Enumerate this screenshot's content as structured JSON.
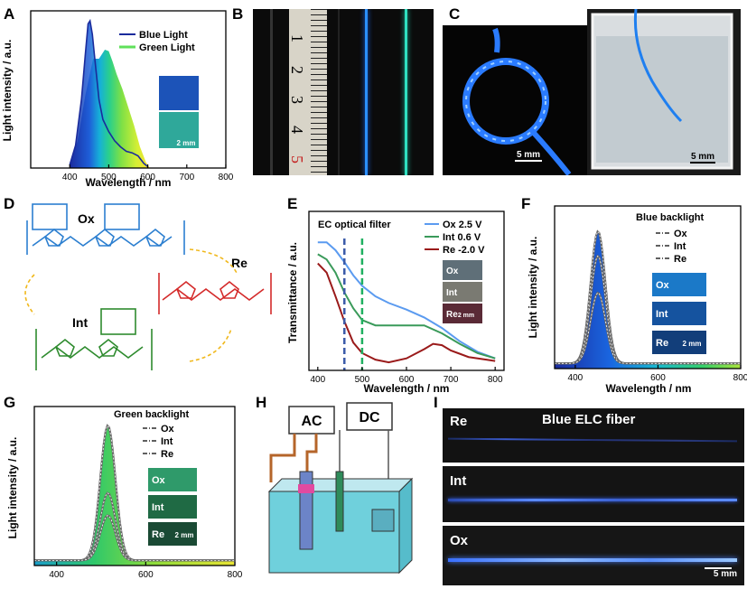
{
  "panels": {
    "A": {
      "letter": "A",
      "ylabel": "Light intensity / a.u.",
      "xlabel": "Wavelength / nm",
      "legend": [
        "Blue Light",
        "Green Light"
      ],
      "scale_bar": "2 mm",
      "colors": {
        "blue": "#1a2b9c",
        "green": "#5fe05a"
      }
    },
    "B": {
      "letter": "B",
      "ruler_numbers": [
        "1",
        "2",
        "3",
        "4",
        "5"
      ]
    },
    "C": {
      "letter": "C",
      "scale_left": "5 mm",
      "scale_right": "5 mm"
    },
    "D": {
      "letter": "D",
      "states": [
        "Ox",
        "Re",
        "Int"
      ],
      "ox_color": "#2c7fd0",
      "re_color": "#d42a2a",
      "int_color": "#2e8b2e"
    },
    "E": {
      "letter": "E",
      "title": "EC optical filter",
      "ylabel": "Transmittance / a.u.",
      "xlabel": "Wavelength / nm",
      "legend": [
        "Ox 2.5 V",
        "Int 0.6 V",
        "Re -2.0 V"
      ],
      "swatch_labels": [
        "Ox",
        "Int",
        "Re"
      ],
      "scale_bar": "2 mm"
    },
    "F": {
      "letter": "F",
      "title": "Blue backlight",
      "ylabel": "Light intensity / a.u.",
      "xlabel": "Wavelength / nm",
      "legend": [
        "Ox",
        "Int",
        "Re"
      ],
      "swatch_labels": [
        "Ox",
        "Int",
        "Re"
      ],
      "scale_bar": "2 mm"
    },
    "G": {
      "letter": "G",
      "title": "Green backlight",
      "ylabel": "Light intensity / a.u.",
      "xlabel": "Wavelength / nm",
      "legend": [
        "Ox",
        "Int",
        "Re"
      ],
      "swatch_labels": [
        "Ox",
        "Int",
        "Re"
      ],
      "scale_bar": "2 mm"
    },
    "H": {
      "letter": "H",
      "ac_label": "AC",
      "dc_label": "DC"
    },
    "I": {
      "letter": "I",
      "title": "Blue ELC fiber",
      "rows": [
        "Re",
        "Int",
        "Ox"
      ],
      "scale_bar": "5 mm"
    }
  },
  "chart_data": [
    {
      "id": "A",
      "type": "area",
      "xlim": [
        300,
        800
      ],
      "xticks": [
        "400",
        "500",
        "600",
        "700",
        "800"
      ],
      "series": [
        {
          "name": "Blue Light",
          "x": [
            400,
            415,
            430,
            440,
            447,
            452,
            458,
            465,
            475,
            485,
            500,
            515,
            530,
            545,
            560,
            575,
            590,
            600
          ],
          "values": [
            0.02,
            0.15,
            0.45,
            0.75,
            0.95,
            0.97,
            0.88,
            0.7,
            0.45,
            0.32,
            0.24,
            0.18,
            0.14,
            0.11,
            0.1,
            0.08,
            0.03,
            0.01
          ]
        },
        {
          "name": "Green Light",
          "x": [
            400,
            420,
            440,
            460,
            475,
            490,
            500,
            510,
            520,
            535,
            550,
            565,
            580,
            595,
            605
          ],
          "values": [
            0.02,
            0.18,
            0.48,
            0.72,
            0.72,
            0.78,
            0.77,
            0.7,
            0.62,
            0.52,
            0.4,
            0.28,
            0.14,
            0.04,
            0.0
          ]
        }
      ]
    },
    {
      "id": "E",
      "type": "line",
      "xlim": [
        380,
        820
      ],
      "xticks": [
        "400",
        "500",
        "600",
        "700",
        "800"
      ],
      "markers": [
        460,
        500
      ],
      "series": [
        {
          "name": "Ox 2.5 V",
          "x": [
            400,
            420,
            440,
            460,
            480,
            500,
            530,
            560,
            600,
            640,
            680,
            720,
            760,
            800
          ],
          "values": [
            0.93,
            0.93,
            0.87,
            0.78,
            0.68,
            0.6,
            0.52,
            0.47,
            0.42,
            0.36,
            0.28,
            0.18,
            0.1,
            0.05
          ]
        },
        {
          "name": "Int 0.6 V",
          "x": [
            400,
            420,
            440,
            460,
            480,
            500,
            530,
            560,
            600,
            640,
            680,
            720,
            760,
            800
          ],
          "values": [
            0.84,
            0.8,
            0.7,
            0.55,
            0.43,
            0.34,
            0.3,
            0.3,
            0.3,
            0.3,
            0.24,
            0.16,
            0.09,
            0.05
          ]
        },
        {
          "name": "Re -2.0 V",
          "x": [
            400,
            420,
            440,
            460,
            480,
            500,
            530,
            560,
            600,
            640,
            660,
            680,
            700,
            740,
            780,
            800
          ],
          "values": [
            0.77,
            0.7,
            0.52,
            0.33,
            0.17,
            0.09,
            0.04,
            0.02,
            0.05,
            0.12,
            0.16,
            0.15,
            0.11,
            0.06,
            0.04,
            0.03
          ]
        }
      ]
    },
    {
      "id": "F",
      "type": "line",
      "xlim": [
        350,
        800
      ],
      "xticks": [
        "400",
        "600",
        "800"
      ],
      "series": [
        {
          "name": "Ox",
          "peak": 455,
          "amplitude": 0.86,
          "width": 18
        },
        {
          "name": "Int",
          "peak": 455,
          "amplitude": 0.7,
          "width": 18
        },
        {
          "name": "Re",
          "peak": 455,
          "amplitude": 0.46,
          "width": 18
        }
      ]
    },
    {
      "id": "G",
      "type": "line",
      "xlim": [
        350,
        800
      ],
      "xticks": [
        "400",
        "600",
        "800"
      ],
      "series": [
        {
          "name": "Ox",
          "peak": 515,
          "amplitude": 0.9,
          "width": 17
        },
        {
          "name": "Int",
          "peak": 515,
          "amplitude": 0.45,
          "width": 17
        },
        {
          "name": "Re",
          "peak": 515,
          "amplitude": 0.3,
          "width": 17
        }
      ]
    }
  ]
}
